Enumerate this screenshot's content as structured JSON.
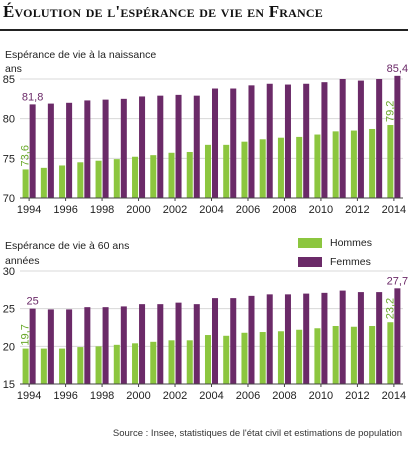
{
  "title": "Évolution de l'espérance de vie en France",
  "source": "Source : Insee, statistiques de l'état civil et estimations de population",
  "colors": {
    "hommes": "#8cc63f",
    "femmes": "#6b2a68",
    "grid": "#d8d8d8",
    "label_green": "#6aa82a",
    "label_purple": "#6b2a68"
  },
  "chart_data": [
    {
      "type": "bar",
      "subtitle": "Espérance de vie à la naissance",
      "ylabel": "ans",
      "ylim": [
        70,
        85
      ],
      "yticks": [
        "70",
        "75",
        "80",
        "85"
      ],
      "categories": [
        "1994",
        "1995",
        "1996",
        "1997",
        "1998",
        "1999",
        "2000",
        "2001",
        "2002",
        "2003",
        "2004",
        "2005",
        "2006",
        "2007",
        "2008",
        "2009",
        "2010",
        "2011",
        "2012",
        "2013",
        "2014"
      ],
      "xtick_labels": [
        "1994",
        "1996",
        "1998",
        "2000",
        "2002",
        "2004",
        "2006",
        "2008",
        "2010",
        "2012",
        "2014"
      ],
      "series": [
        {
          "name": "Hommes",
          "values": [
            73.6,
            73.8,
            74.1,
            74.5,
            74.7,
            74.9,
            75.2,
            75.4,
            75.7,
            75.8,
            76.7,
            76.7,
            77.1,
            77.4,
            77.6,
            77.7,
            78.0,
            78.4,
            78.5,
            78.7,
            79.2
          ]
        },
        {
          "name": "Femmes",
          "values": [
            81.8,
            81.9,
            82.0,
            82.3,
            82.4,
            82.5,
            82.8,
            82.9,
            83.0,
            82.9,
            83.8,
            83.8,
            84.2,
            84.4,
            84.3,
            84.4,
            84.6,
            85.0,
            84.8,
            85.0,
            85.4
          ]
        }
      ],
      "annotations": [
        {
          "series": "Hommes",
          "category": "1994",
          "text": "73,6"
        },
        {
          "series": "Femmes",
          "category": "1994",
          "text": "81,8"
        },
        {
          "series": "Hommes",
          "category": "2014",
          "text": "79,2"
        },
        {
          "series": "Femmes",
          "category": "2014",
          "text": "85,4"
        }
      ]
    },
    {
      "type": "bar",
      "subtitle": "Espérance de vie à 60 ans",
      "ylabel": "années",
      "ylim": [
        15,
        30
      ],
      "yticks": [
        "15",
        "20",
        "25",
        "30"
      ],
      "categories": [
        "1994",
        "1995",
        "1996",
        "1997",
        "1998",
        "1999",
        "2000",
        "2001",
        "2002",
        "2003",
        "2004",
        "2005",
        "2006",
        "2007",
        "2008",
        "2009",
        "2010",
        "2011",
        "2012",
        "2013",
        "2014"
      ],
      "xtick_labels": [
        "1994",
        "1996",
        "1998",
        "2000",
        "2002",
        "2004",
        "2006",
        "2008",
        "2010",
        "2012",
        "2014"
      ],
      "series": [
        {
          "name": "Hommes",
          "values": [
            19.7,
            19.7,
            19.7,
            19.9,
            20.0,
            20.2,
            20.4,
            20.6,
            20.8,
            20.8,
            21.5,
            21.4,
            21.8,
            21.9,
            22.0,
            22.2,
            22.4,
            22.7,
            22.6,
            22.7,
            23.2
          ]
        },
        {
          "name": "Femmes",
          "values": [
            25.0,
            24.9,
            24.9,
            25.2,
            25.2,
            25.3,
            25.6,
            25.6,
            25.8,
            25.6,
            26.4,
            26.4,
            26.7,
            26.9,
            26.9,
            27.0,
            27.1,
            27.4,
            27.2,
            27.2,
            27.7
          ]
        }
      ],
      "annotations": [
        {
          "series": "Hommes",
          "category": "1994",
          "text": "19,7"
        },
        {
          "series": "Femmes",
          "category": "1994",
          "text": "25"
        },
        {
          "series": "Hommes",
          "category": "2014",
          "text": "23,2"
        },
        {
          "series": "Femmes",
          "category": "2014",
          "text": "27,7"
        }
      ],
      "legend": {
        "position": "top-right",
        "entries": [
          "Hommes",
          "Femmes"
        ]
      }
    }
  ]
}
